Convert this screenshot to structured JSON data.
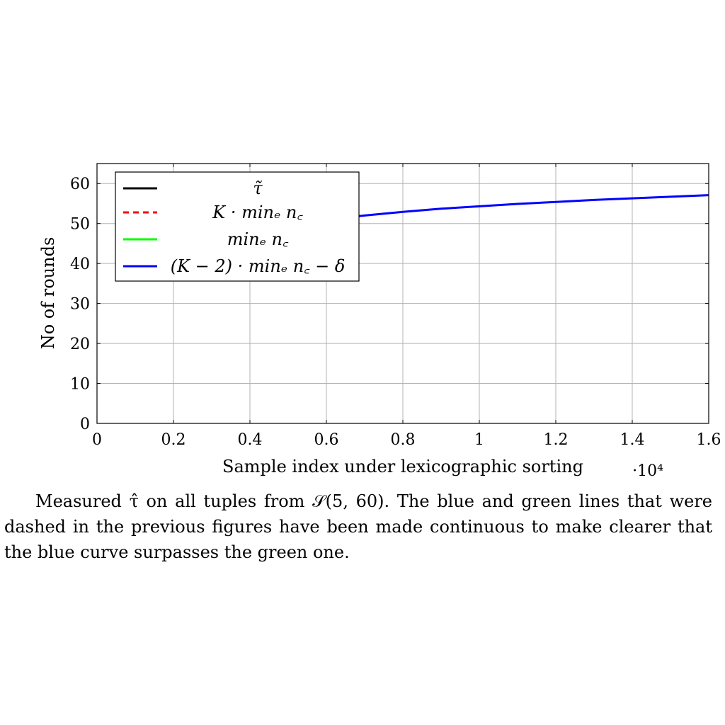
{
  "chart_data": {
    "type": "line",
    "xlabel": "Sample index under lexicographic sorting",
    "ylabel": "No of rounds",
    "x_multiplier": "·10⁴",
    "xlim": [
      0,
      1.6
    ],
    "ylim": [
      0,
      65
    ],
    "x_ticks": [
      0,
      0.2,
      0.4,
      0.6,
      0.8,
      1,
      1.2,
      1.4,
      1.6
    ],
    "y_ticks": [
      0,
      10,
      20,
      30,
      40,
      50,
      60
    ],
    "grid": true,
    "legend_position": "top-left",
    "series": [
      {
        "name": "τ̃",
        "color": "#000000",
        "dash": "solid",
        "x": [],
        "y": []
      },
      {
        "name": "K · minₑ n꜀",
        "color": "#ff0000",
        "dash": "dashed",
        "x": [],
        "y": []
      },
      {
        "name": "minₑ n꜀",
        "color": "#00ff00",
        "dash": "solid",
        "x": [],
        "y": []
      },
      {
        "name": "(K − 2) · minₑ n꜀ − δ",
        "color": "#0000ff",
        "dash": "solid",
        "x": [
          0.66,
          0.7,
          0.8,
          0.9,
          1.0,
          1.1,
          1.2,
          1.3,
          1.4,
          1.5,
          1.6
        ],
        "y": [
          51.6,
          52.0,
          52.9,
          53.7,
          54.3,
          54.9,
          55.4,
          55.9,
          56.3,
          56.7,
          57.1
        ]
      }
    ]
  },
  "caption": "Measured τ̂ on all tuples from 𝒮(5, 60). The blue and green lines that were dashed in the previous figures have been made continuous to make clearer that the blue curve surpasses the green one."
}
